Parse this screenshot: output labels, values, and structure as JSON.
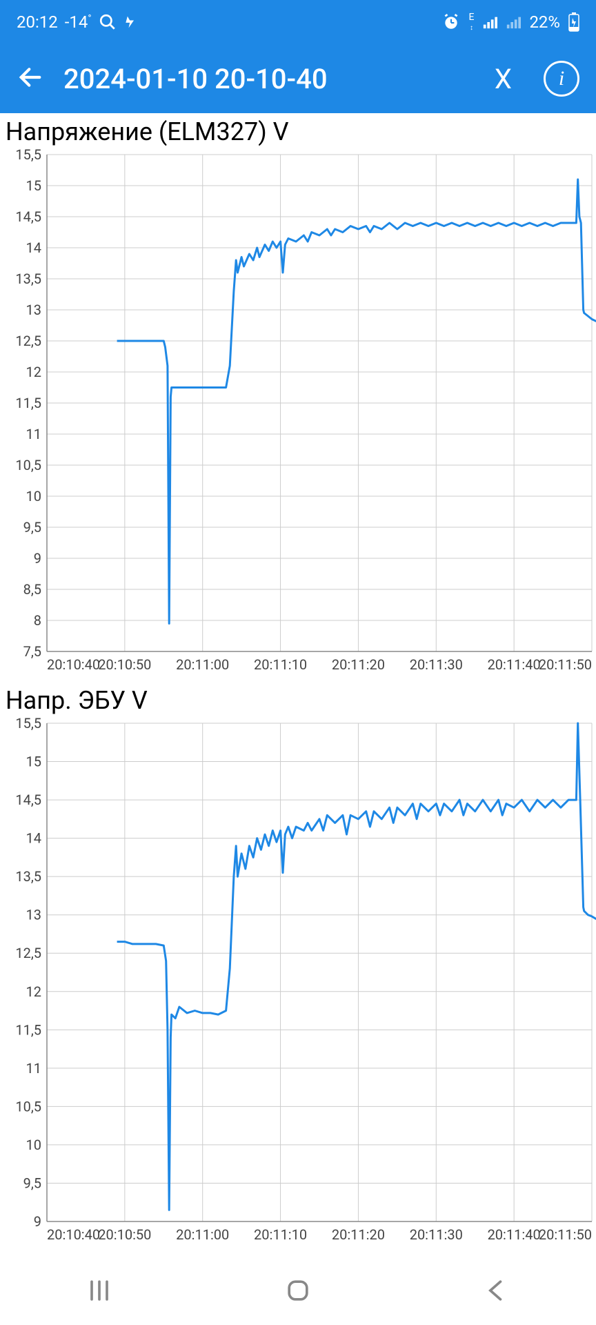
{
  "status_bar": {
    "time": "20:12",
    "temp": "-14",
    "temp_unit": "°",
    "battery_pct": "22%",
    "icons": [
      "search",
      "flash",
      "alarm",
      "data-e",
      "signal-1",
      "signal-2",
      "battery"
    ]
  },
  "app_bar": {
    "title": "2024-01-10 20-10-40",
    "close_label": "X"
  },
  "charts": [
    {
      "title": "Напряжение (ELM327) V",
      "type": "line",
      "line_color": "#1e88e5",
      "line_width": 3,
      "background_color": "#ffffff",
      "grid_color": "#cccccc",
      "axis_color": "#888888",
      "label_color": "#444444",
      "label_fontsize": 20,
      "xlim": [
        0,
        70
      ],
      "x_ticks": [
        0,
        10,
        20,
        30,
        40,
        50,
        60,
        70
      ],
      "x_tick_labels": [
        "20:10:40",
        "20:10:50",
        "20:11:00",
        "20:11:10",
        "20:11:20",
        "20:11:30",
        "20:11:40",
        "20:11:50"
      ],
      "ylim": [
        7.5,
        15.5
      ],
      "y_ticks": [
        7.5,
        8,
        8.5,
        9,
        9.5,
        10,
        10.5,
        11,
        11.5,
        12,
        12.5,
        13,
        13.5,
        14,
        14.5,
        15,
        15.5
      ],
      "y_tick_labels": [
        "7,5",
        "8",
        "8,5",
        "9",
        "9,5",
        "10",
        "10,5",
        "11",
        "11,5",
        "12",
        "12,5",
        "13",
        "13,5",
        "14",
        "14,5",
        "15",
        "15,5"
      ],
      "data": [
        [
          9,
          12.5
        ],
        [
          10,
          12.5
        ],
        [
          11,
          12.5
        ],
        [
          12,
          12.5
        ],
        [
          13,
          12.5
        ],
        [
          14,
          12.5
        ],
        [
          15,
          12.5
        ],
        [
          15.2,
          12.4
        ],
        [
          15.5,
          12.1
        ],
        [
          15.7,
          7.95
        ],
        [
          15.9,
          11.6
        ],
        [
          16,
          11.75
        ],
        [
          17,
          11.75
        ],
        [
          18,
          11.75
        ],
        [
          19,
          11.75
        ],
        [
          20,
          11.75
        ],
        [
          21,
          11.75
        ],
        [
          22,
          11.75
        ],
        [
          23,
          11.75
        ],
        [
          23.5,
          12.1
        ],
        [
          24,
          13.3
        ],
        [
          24.3,
          13.8
        ],
        [
          24.5,
          13.6
        ],
        [
          25,
          13.85
        ],
        [
          25.3,
          13.7
        ],
        [
          26,
          13.9
        ],
        [
          26.5,
          13.8
        ],
        [
          27,
          14.0
        ],
        [
          27.3,
          13.85
        ],
        [
          28,
          14.05
        ],
        [
          28.5,
          13.95
        ],
        [
          29,
          14.1
        ],
        [
          29.5,
          14.0
        ],
        [
          30,
          14.1
        ],
        [
          30.3,
          13.6
        ],
        [
          30.6,
          14.05
        ],
        [
          31,
          14.15
        ],
        [
          32,
          14.1
        ],
        [
          33,
          14.2
        ],
        [
          33.5,
          14.1
        ],
        [
          34,
          14.25
        ],
        [
          35,
          14.2
        ],
        [
          36,
          14.3
        ],
        [
          36.5,
          14.2
        ],
        [
          37,
          14.3
        ],
        [
          38,
          14.25
        ],
        [
          39,
          14.35
        ],
        [
          40,
          14.3
        ],
        [
          41,
          14.35
        ],
        [
          41.5,
          14.25
        ],
        [
          42,
          14.35
        ],
        [
          43,
          14.3
        ],
        [
          44,
          14.4
        ],
        [
          45,
          14.3
        ],
        [
          46,
          14.4
        ],
        [
          47,
          14.35
        ],
        [
          48,
          14.4
        ],
        [
          49,
          14.35
        ],
        [
          50,
          14.4
        ],
        [
          51,
          14.35
        ],
        [
          52,
          14.4
        ],
        [
          53,
          14.35
        ],
        [
          54,
          14.4
        ],
        [
          55,
          14.35
        ],
        [
          56,
          14.4
        ],
        [
          57,
          14.35
        ],
        [
          58,
          14.4
        ],
        [
          59,
          14.35
        ],
        [
          60,
          14.4
        ],
        [
          61,
          14.35
        ],
        [
          62,
          14.4
        ],
        [
          63,
          14.35
        ],
        [
          64,
          14.4
        ],
        [
          65,
          14.35
        ],
        [
          66,
          14.4
        ],
        [
          67,
          14.4
        ],
        [
          68,
          14.4
        ],
        [
          68.2,
          15.1
        ],
        [
          68.4,
          14.5
        ],
        [
          68.6,
          14.4
        ],
        [
          68.9,
          13.0
        ],
        [
          69,
          12.95
        ],
        [
          69.5,
          12.9
        ],
        [
          70,
          12.85
        ],
        [
          70.5,
          12.82
        ],
        [
          71,
          12.8
        ]
      ]
    },
    {
      "title": "Напр. ЭБУ V",
      "type": "line",
      "line_color": "#1e88e5",
      "line_width": 3,
      "background_color": "#ffffff",
      "grid_color": "#cccccc",
      "axis_color": "#888888",
      "label_color": "#444444",
      "label_fontsize": 20,
      "xlim": [
        0,
        70
      ],
      "x_ticks": [
        0,
        10,
        20,
        30,
        40,
        50,
        60,
        70
      ],
      "x_tick_labels": [
        "20:10:40",
        "20:10:50",
        "20:11:00",
        "20:11:10",
        "20:11:20",
        "20:11:30",
        "20:11:40",
        "20:11:50"
      ],
      "ylim": [
        9,
        15.5
      ],
      "y_ticks": [
        9,
        9.5,
        10,
        10.5,
        11,
        11.5,
        12,
        12.5,
        13,
        13.5,
        14,
        14.5,
        15,
        15.5
      ],
      "y_tick_labels": [
        "9",
        "9,5",
        "10",
        "10,5",
        "11",
        "11,5",
        "12",
        "12,5",
        "13",
        "13,5",
        "14",
        "14,5",
        "15",
        "15,5"
      ],
      "data": [
        [
          9,
          12.65
        ],
        [
          10,
          12.65
        ],
        [
          11,
          12.62
        ],
        [
          12,
          12.62
        ],
        [
          13,
          12.62
        ],
        [
          14,
          12.62
        ],
        [
          15,
          12.6
        ],
        [
          15.3,
          12.4
        ],
        [
          15.5,
          11.5
        ],
        [
          15.7,
          9.15
        ],
        [
          15.9,
          11.4
        ],
        [
          16,
          11.7
        ],
        [
          16.5,
          11.65
        ],
        [
          17,
          11.8
        ],
        [
          18,
          11.72
        ],
        [
          19,
          11.75
        ],
        [
          20,
          11.72
        ],
        [
          21,
          11.72
        ],
        [
          22,
          11.7
        ],
        [
          23,
          11.75
        ],
        [
          23.5,
          12.3
        ],
        [
          24,
          13.5
        ],
        [
          24.3,
          13.9
        ],
        [
          24.5,
          13.5
        ],
        [
          25,
          13.8
        ],
        [
          25.5,
          13.6
        ],
        [
          26,
          13.9
        ],
        [
          26.5,
          13.75
        ],
        [
          27,
          14.0
        ],
        [
          27.5,
          13.85
        ],
        [
          28,
          14.05
        ],
        [
          28.5,
          13.9
        ],
        [
          29,
          14.1
        ],
        [
          29.5,
          13.95
        ],
        [
          30,
          14.1
        ],
        [
          30.3,
          13.55
        ],
        [
          30.6,
          14.05
        ],
        [
          31,
          14.15
        ],
        [
          31.5,
          14.0
        ],
        [
          32,
          14.15
        ],
        [
          33,
          14.1
        ],
        [
          33.5,
          14.2
        ],
        [
          34,
          14.1
        ],
        [
          35,
          14.25
        ],
        [
          35.5,
          14.1
        ],
        [
          36,
          14.3
        ],
        [
          37,
          14.2
        ],
        [
          38,
          14.3
        ],
        [
          38.5,
          14.05
        ],
        [
          39,
          14.3
        ],
        [
          40,
          14.25
        ],
        [
          41,
          14.35
        ],
        [
          41.5,
          14.15
        ],
        [
          42,
          14.35
        ],
        [
          43,
          14.25
        ],
        [
          44,
          14.4
        ],
        [
          44.5,
          14.2
        ],
        [
          45,
          14.4
        ],
        [
          46,
          14.3
        ],
        [
          47,
          14.45
        ],
        [
          47.5,
          14.25
        ],
        [
          48,
          14.45
        ],
        [
          49,
          14.35
        ],
        [
          50,
          14.45
        ],
        [
          50.5,
          14.3
        ],
        [
          51,
          14.45
        ],
        [
          52,
          14.35
        ],
        [
          53,
          14.5
        ],
        [
          53.5,
          14.3
        ],
        [
          54,
          14.45
        ],
        [
          55,
          14.35
        ],
        [
          56,
          14.5
        ],
        [
          57,
          14.35
        ],
        [
          58,
          14.5
        ],
        [
          58.5,
          14.3
        ],
        [
          59,
          14.45
        ],
        [
          60,
          14.4
        ],
        [
          61,
          14.5
        ],
        [
          62,
          14.35
        ],
        [
          63,
          14.5
        ],
        [
          64,
          14.4
        ],
        [
          65,
          14.5
        ],
        [
          66,
          14.4
        ],
        [
          67,
          14.5
        ],
        [
          68,
          14.5
        ],
        [
          68.2,
          15.5
        ],
        [
          68.5,
          14.5
        ],
        [
          68.9,
          13.1
        ],
        [
          69,
          13.05
        ],
        [
          69.5,
          13.0
        ],
        [
          70,
          12.98
        ],
        [
          70.5,
          12.95
        ],
        [
          71,
          12.92
        ]
      ]
    }
  ],
  "nav_bar": {
    "recent": "recent-apps",
    "home": "home",
    "back": "back"
  }
}
